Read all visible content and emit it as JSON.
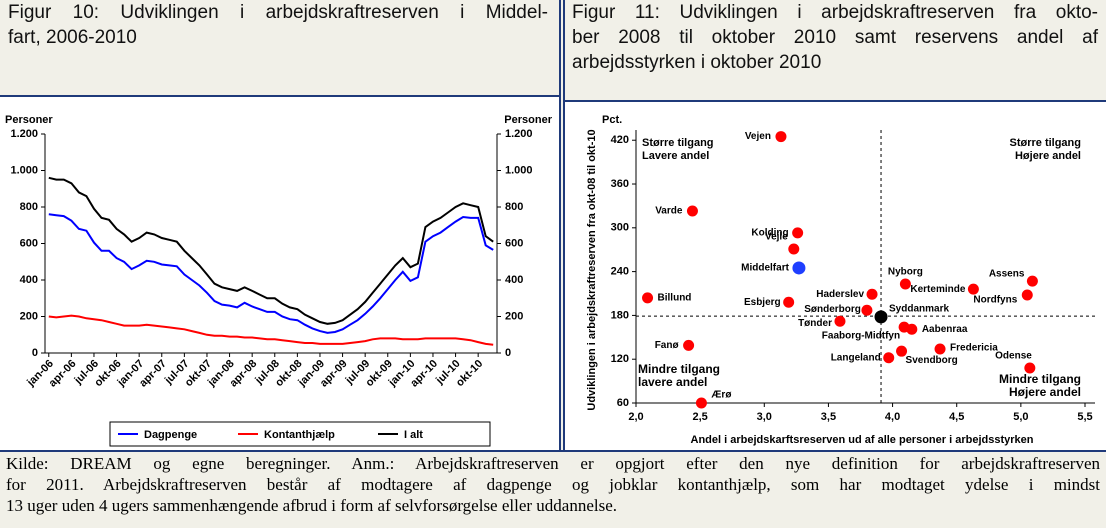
{
  "chart_data": [
    {
      "type": "line",
      "title": [
        "Figur 10: Udviklingen i arbejdskraftreserven i Middel-",
        "fart, 2006-2010"
      ],
      "ylabel": "Personer",
      "y2label": "Personer",
      "categories": [
        "jan-06",
        null,
        null,
        "apr-06",
        null,
        null,
        "jul-06",
        null,
        null,
        "okt-06",
        null,
        null,
        "jan-07",
        null,
        null,
        "apr-07",
        null,
        null,
        "jul-07",
        null,
        null,
        "okt-07",
        null,
        null,
        "jan-08",
        null,
        null,
        "apr-08",
        null,
        null,
        "jul-08",
        null,
        null,
        "okt-08",
        null,
        null,
        "jan-09",
        null,
        null,
        "apr-09",
        null,
        null,
        "jul-09",
        null,
        null,
        "okt-09",
        null,
        null,
        "jan-10",
        null,
        null,
        "apr-10",
        null,
        null,
        "jul-10",
        null,
        null,
        "okt-10",
        null,
        null
      ],
      "series": [
        {
          "name": "Dagpenge",
          "color": "#0000ff",
          "values": [
            760,
            755,
            750,
            725,
            680,
            670,
            605,
            560,
            560,
            520,
            500,
            460,
            480,
            505,
            500,
            485,
            480,
            475,
            430,
            400,
            370,
            330,
            285,
            265,
            260,
            250,
            275,
            255,
            240,
            225,
            225,
            200,
            185,
            180,
            155,
            135,
            120,
            110,
            115,
            130,
            155,
            180,
            215,
            255,
            300,
            350,
            400,
            445,
            395,
            415,
            610,
            640,
            660,
            690,
            720,
            745,
            740,
            740,
            590,
            565
          ]
        },
        {
          "name": "Kontanthjælp",
          "color": "#ff0000",
          "values": [
            200,
            195,
            200,
            205,
            200,
            190,
            185,
            180,
            170,
            160,
            150,
            150,
            150,
            155,
            150,
            145,
            140,
            135,
            130,
            120,
            110,
            100,
            95,
            95,
            90,
            90,
            85,
            85,
            80,
            75,
            75,
            70,
            65,
            60,
            55,
            55,
            50,
            50,
            50,
            50,
            55,
            60,
            65,
            75,
            80,
            80,
            80,
            75,
            75,
            75,
            80,
            80,
            80,
            80,
            80,
            75,
            70,
            60,
            50,
            45
          ]
        },
        {
          "name": "I alt",
          "color": "#000000",
          "values": [
            960,
            950,
            950,
            930,
            880,
            860,
            790,
            740,
            730,
            680,
            650,
            610,
            630,
            660,
            650,
            630,
            620,
            610,
            560,
            520,
            480,
            430,
            380,
            360,
            350,
            340,
            360,
            340,
            320,
            300,
            300,
            270,
            250,
            240,
            210,
            190,
            170,
            160,
            165,
            180,
            210,
            240,
            280,
            330,
            380,
            430,
            480,
            520,
            470,
            490,
            690,
            720,
            740,
            770,
            800,
            820,
            810,
            800,
            640,
            610
          ]
        }
      ],
      "ylim": [
        0,
        1200
      ],
      "yticks": [
        0,
        200,
        400,
        600,
        800,
        {
          "value": 1000,
          "label": "1.000"
        },
        {
          "value": 1200,
          "label": "1.200"
        }
      ],
      "y2lim": [
        0,
        1200
      ],
      "y2ticks": [
        0,
        200,
        400,
        600,
        800,
        {
          "value": 1000,
          "label": "1.000"
        },
        {
          "value": 1200,
          "label": "1.200"
        }
      ],
      "legend": "bottom"
    },
    {
      "type": "scatter",
      "title": [
        "Figur 11: Udviklingen i arbejdskraftreserven fra okto-",
        "ber 2008 til oktober 2010 samt reservens andel af",
        "arbejdsstyrken i oktober 2010"
      ],
      "ylabel": "Udviklingen i arbejdskraftreserven fra okt-08 til okt-10",
      "yunit": "Pct.",
      "xlabel": "Andel i arbejdskarftsreserven ud af alle personer i arbejdsstyrken",
      "points": [
        {
          "label": "Vejen",
          "x": 3.13,
          "y": 425,
          "color": "#ff0000"
        },
        {
          "label": "Varde",
          "x": 2.44,
          "y": 323,
          "color": "#ff0000"
        },
        {
          "label": "Kolding",
          "x": 3.26,
          "y": 293,
          "color": "#ff0000"
        },
        {
          "label": "Vejle",
          "x": 3.23,
          "y": 271,
          "color": "#ff0000"
        },
        {
          "label": "Middelfart",
          "x": 3.27,
          "y": 245,
          "color": "#1f3fff"
        },
        {
          "label": "Nyborg",
          "x": 4.1,
          "y": 223,
          "color": "#ff0000"
        },
        {
          "label": "Assens",
          "x": 5.09,
          "y": 227,
          "color": "#ff0000"
        },
        {
          "label": "Kerteminde",
          "x": 4.63,
          "y": 216,
          "color": "#ff0000"
        },
        {
          "label": "Nordfyns",
          "x": 5.05,
          "y": 208,
          "color": "#ff0000"
        },
        {
          "label": "Billund",
          "x": 2.09,
          "y": 204,
          "color": "#ff0000"
        },
        {
          "label": "Haderslev",
          "x": 3.84,
          "y": 209,
          "color": "#ff0000"
        },
        {
          "label": "Esbjerg",
          "x": 3.19,
          "y": 198,
          "color": "#ff0000"
        },
        {
          "label": "Sønderborg",
          "x": 3.8,
          "y": 187,
          "color": "#ff0000"
        },
        {
          "label": "Tønder",
          "x": 3.59,
          "y": 172,
          "color": "#ff0000"
        },
        {
          "label": "Syddanmark",
          "x": 3.91,
          "y": 178,
          "color": "#000000"
        },
        {
          "label": "Faaborg-Midtfyn",
          "x": 4.09,
          "y": 164,
          "color": "#ff0000"
        },
        {
          "label": "Aabenraa",
          "x": 4.15,
          "y": 161,
          "color": "#ff0000"
        },
        {
          "label": "Fanø",
          "x": 2.41,
          "y": 139,
          "color": "#ff0000"
        },
        {
          "label": "Fredericia",
          "x": 4.37,
          "y": 134,
          "color": "#ff0000"
        },
        {
          "label": "Langeland",
          "x": 3.97,
          "y": 122,
          "color": "#ff0000"
        },
        {
          "label": "Svendborg",
          "x": 4.07,
          "y": 131,
          "color": "#ff0000"
        },
        {
          "label": "Odense",
          "x": 5.07,
          "y": 108,
          "color": "#ff0000"
        },
        {
          "label": "Ærø",
          "x": 2.51,
          "y": 60,
          "color": "#ff0000"
        }
      ],
      "reference_lines": {
        "x": 3.91,
        "y": 179
      },
      "annotations": [
        {
          "lines": [
            "Større tilgang",
            "Lavere andel"
          ]
        },
        {
          "lines": [
            "Større tilgang",
            "Højere andel"
          ]
        },
        {
          "lines": [
            "Mindre tilgang",
            "lavere andel"
          ]
        },
        {
          "lines": [
            "Mindre tilgang",
            "Højere andel"
          ]
        }
      ],
      "xlim": [
        2,
        5.5
      ],
      "xticks": [
        {
          "value": 2,
          "label": "2,0"
        },
        {
          "value": 2.5,
          "label": "2,5"
        },
        {
          "value": 3,
          "label": "3,0"
        },
        {
          "value": 3.5,
          "label": "3,5"
        },
        {
          "value": 4,
          "label": "4,0"
        },
        {
          "value": 4.5,
          "label": "4,5"
        },
        {
          "value": 5,
          "label": "5,0"
        },
        {
          "value": 5.5,
          "label": "5,5"
        }
      ],
      "ylim": [
        60,
        434
      ],
      "yticks": [
        60,
        120,
        180,
        240,
        300,
        360,
        420
      ]
    }
  ],
  "note": [
    "Kilde: DREAM og egne beregninger. Anm.: Arbejdskraftreserven er opgjort efter den nye definition for arbejdskraftreserven",
    "for 2011. Arbejdskraftreserven består af modtagere af dagpenge og jobklar kontanthjælp, som har modtaget ydelse i mindst",
    "13 uger uden 4 ugers sammenhængende afbrud i form af selvforsørgelse eller uddannelse."
  ]
}
